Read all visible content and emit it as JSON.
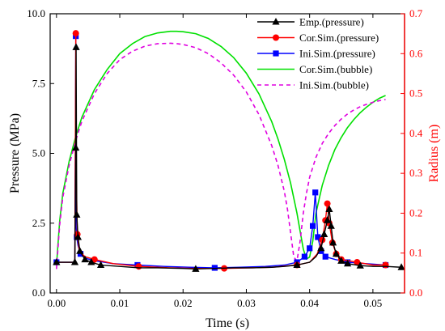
{
  "chart_data": {
    "type": "line",
    "xlabel": "Time (s)",
    "ylabel_left": "Pressure (MPa)",
    "ylabel_right": "Radius (m)",
    "xlim": [
      -0.001,
      0.055
    ],
    "ylim_left": [
      0,
      10
    ],
    "ylim_right": [
      0,
      0.7
    ],
    "x_ticks": [
      "0.00",
      "0.01",
      "0.02",
      "0.03",
      "0.04",
      "0.05"
    ],
    "x_tick_values": [
      0,
      0.01,
      0.02,
      0.03,
      0.04,
      0.05
    ],
    "y_left_ticks": [
      "0.0",
      "2.5",
      "5.0",
      "7.5",
      "10.0"
    ],
    "y_left_tick_values": [
      0,
      2.5,
      5,
      7.5,
      10
    ],
    "y_right_ticks": [
      "0.0",
      "0.1",
      "0.2",
      "0.3",
      "0.4",
      "0.5",
      "0.6",
      "0.7"
    ],
    "y_right_tick_values": [
      0,
      0.1,
      0.2,
      0.3,
      0.4,
      0.5,
      0.6,
      0.7
    ],
    "legend_position": "top-right",
    "colors": {
      "left_axis": "#000000",
      "right_axis": "#ff0000"
    },
    "series": [
      {
        "name": "Emp.(pressure)",
        "axis": "left",
        "color": "#000000",
        "marker": "triangle",
        "dash": "solid",
        "x": [
          0.0,
          0.0029,
          0.00305,
          0.0031,
          0.0032,
          0.0034,
          0.0037,
          0.0045,
          0.0055,
          0.007,
          0.01,
          0.013,
          0.016,
          0.02,
          0.022,
          0.025,
          0.028,
          0.031,
          0.034,
          0.036,
          0.038,
          0.04,
          0.041,
          0.0418,
          0.0423,
          0.0428,
          0.0431,
          0.0434,
          0.0437,
          0.0442,
          0.045,
          0.046,
          0.048,
          0.05,
          0.052,
          0.0545
        ],
        "y": [
          1.1,
          1.1,
          5.2,
          8.8,
          2.8,
          2.0,
          1.5,
          1.2,
          1.1,
          1.0,
          0.95,
          0.9,
          0.9,
          0.88,
          0.86,
          0.88,
          0.9,
          0.9,
          0.92,
          0.95,
          1.0,
          1.1,
          1.3,
          1.6,
          2.1,
          2.6,
          3.0,
          2.4,
          1.8,
          1.4,
          1.15,
          1.05,
          0.98,
          0.95,
          0.95,
          0.92
        ],
        "marker_indices": [
          0,
          1,
          2,
          3,
          4,
          5,
          6,
          7,
          8,
          9,
          14,
          20,
          23,
          24,
          25,
          26,
          27,
          28,
          29,
          30,
          31,
          32,
          35
        ]
      },
      {
        "name": "Cor.Sim.(pressure)",
        "axis": "left",
        "color": "#ff0000",
        "marker": "circle",
        "dash": "solid",
        "x": [
          0.0,
          0.0029,
          0.00305,
          0.0031,
          0.0033,
          0.0036,
          0.0045,
          0.006,
          0.009,
          0.013,
          0.018,
          0.022,
          0.0265,
          0.031,
          0.034,
          0.036,
          0.038,
          0.04,
          0.0412,
          0.042,
          0.0425,
          0.0428,
          0.0431,
          0.0436,
          0.0442,
          0.045,
          0.0475,
          0.05,
          0.052
        ],
        "y": [
          1.1,
          1.1,
          9.3,
          4.5,
          2.1,
          1.5,
          1.3,
          1.2,
          1.05,
          0.95,
          0.9,
          0.88,
          0.88,
          0.9,
          0.92,
          0.96,
          1.0,
          1.1,
          1.4,
          1.9,
          2.6,
          3.2,
          2.5,
          1.8,
          1.4,
          1.2,
          1.1,
          1.0,
          1.0
        ],
        "marker_indices": [
          2,
          4,
          7,
          9,
          12,
          16,
          19,
          20,
          21,
          22,
          23,
          24,
          25,
          26,
          28
        ]
      },
      {
        "name": "Ini.Sim.(pressure)",
        "axis": "left",
        "color": "#0000ff",
        "marker": "square",
        "dash": "solid",
        "x": [
          0.0,
          0.0029,
          0.00305,
          0.0031,
          0.0032,
          0.0034,
          0.0038,
          0.0045,
          0.006,
          0.009,
          0.0128,
          0.017,
          0.021,
          0.025,
          0.029,
          0.033,
          0.036,
          0.038,
          0.0392,
          0.04,
          0.0405,
          0.0409,
          0.0413,
          0.0418,
          0.0425,
          0.044,
          0.046,
          0.049,
          0.052
        ],
        "y": [
          1.1,
          1.1,
          9.2,
          2.4,
          2.0,
          1.7,
          1.4,
          1.25,
          1.15,
          1.05,
          1.0,
          0.95,
          0.92,
          0.9,
          0.92,
          0.95,
          1.0,
          1.1,
          1.3,
          1.6,
          2.4,
          3.6,
          2.0,
          1.5,
          1.3,
          1.2,
          1.1,
          1.05,
          1.0
        ],
        "marker_indices": [
          0,
          2,
          4,
          6,
          10,
          13,
          17,
          18,
          19,
          20,
          21,
          22,
          23,
          24,
          26,
          28
        ]
      },
      {
        "name": "Cor.Sim.(bubble)",
        "axis": "right",
        "color": "#00e000",
        "marker": "none",
        "dash": "solid",
        "x": [
          0.0,
          0.0005,
          0.001,
          0.002,
          0.003,
          0.004,
          0.006,
          0.008,
          0.01,
          0.012,
          0.014,
          0.016,
          0.018,
          0.019,
          0.02,
          0.022,
          0.024,
          0.026,
          0.028,
          0.03,
          0.032,
          0.034,
          0.035,
          0.036,
          0.037,
          0.038,
          0.0385,
          0.039,
          0.0395,
          0.04,
          0.0405,
          0.041,
          0.042,
          0.043,
          0.044,
          0.045,
          0.046,
          0.047,
          0.048,
          0.049,
          0.05,
          0.051,
          0.052
        ],
        "y": [
          0.07,
          0.18,
          0.25,
          0.33,
          0.39,
          0.44,
          0.51,
          0.56,
          0.6,
          0.625,
          0.643,
          0.652,
          0.656,
          0.656,
          0.655,
          0.65,
          0.638,
          0.618,
          0.59,
          0.551,
          0.499,
          0.43,
          0.386,
          0.335,
          0.275,
          0.2,
          0.155,
          0.11,
          0.085,
          0.09,
          0.13,
          0.2,
          0.27,
          0.32,
          0.36,
          0.39,
          0.415,
          0.435,
          0.452,
          0.466,
          0.478,
          0.488,
          0.495
        ]
      },
      {
        "name": "Ini.Sim.(bubble)",
        "axis": "right",
        "color": "#e000e0",
        "marker": "none",
        "dash": "dashed",
        "x": [
          0.0,
          0.0005,
          0.001,
          0.002,
          0.003,
          0.004,
          0.006,
          0.008,
          0.01,
          0.012,
          0.014,
          0.016,
          0.018,
          0.019,
          0.02,
          0.022,
          0.024,
          0.026,
          0.028,
          0.03,
          0.032,
          0.034,
          0.035,
          0.036,
          0.0365,
          0.037,
          0.0375,
          0.038,
          0.0385,
          0.039,
          0.0395,
          0.04,
          0.041,
          0.042,
          0.043,
          0.044,
          0.045,
          0.046,
          0.047,
          0.048,
          0.049,
          0.05,
          0.051,
          0.052
        ],
        "y": [
          0.06,
          0.17,
          0.24,
          0.32,
          0.38,
          0.43,
          0.5,
          0.55,
          0.585,
          0.606,
          0.619,
          0.625,
          0.626,
          0.625,
          0.623,
          0.615,
          0.6,
          0.577,
          0.546,
          0.504,
          0.447,
          0.37,
          0.32,
          0.255,
          0.21,
          0.15,
          0.09,
          0.08,
          0.13,
          0.2,
          0.25,
          0.29,
          0.34,
          0.375,
          0.4,
          0.42,
          0.436,
          0.449,
          0.459,
          0.467,
          0.473,
          0.478,
          0.482,
          0.485
        ]
      }
    ]
  }
}
